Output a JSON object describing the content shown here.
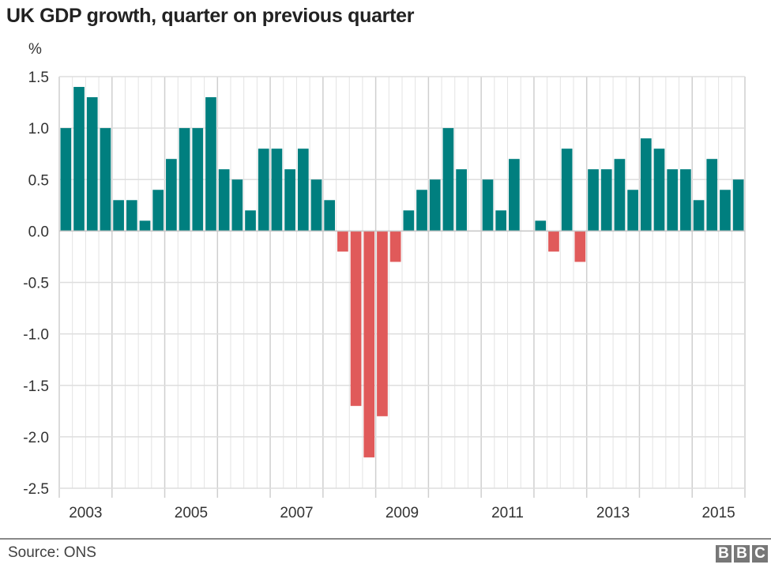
{
  "title": "UK GDP growth, quarter on previous quarter",
  "source": "Source: ONS",
  "logo": "BBC",
  "colors": {
    "positive": "#007f7f",
    "negative": "#e05a5a",
    "grid": "#dddddd"
  },
  "chart_data": {
    "type": "bar",
    "title": "UK GDP growth, quarter on previous quarter",
    "ylabel": "%",
    "xlabel": "",
    "ylim": [
      -2.5,
      1.5
    ],
    "yticks": [
      "1.5",
      "1.0",
      "0.5",
      "0.0",
      "-0.5",
      "-1.0",
      "-1.5",
      "-2.0",
      "-2.5"
    ],
    "xtick_labels": [
      "2003",
      "2005",
      "2007",
      "2009",
      "2011",
      "2013",
      "2015"
    ],
    "start_year": 2003,
    "grid": true,
    "categories": [
      "2003 Q1",
      "2003 Q2",
      "2003 Q3",
      "2003 Q4",
      "2004 Q1",
      "2004 Q2",
      "2004 Q3",
      "2004 Q4",
      "2005 Q1",
      "2005 Q2",
      "2005 Q3",
      "2005 Q4",
      "2006 Q1",
      "2006 Q2",
      "2006 Q3",
      "2006 Q4",
      "2007 Q1",
      "2007 Q2",
      "2007 Q3",
      "2007 Q4",
      "2008 Q1",
      "2008 Q2",
      "2008 Q3",
      "2008 Q4",
      "2009 Q1",
      "2009 Q2",
      "2009 Q3",
      "2009 Q4",
      "2010 Q1",
      "2010 Q2",
      "2010 Q3",
      "2010 Q4",
      "2011 Q1",
      "2011 Q2",
      "2011 Q3",
      "2011 Q4",
      "2012 Q1",
      "2012 Q2",
      "2012 Q3",
      "2012 Q4",
      "2013 Q1",
      "2013 Q2",
      "2013 Q3",
      "2013 Q4",
      "2014 Q1",
      "2014 Q2",
      "2014 Q3",
      "2014 Q4",
      "2015 Q1",
      "2015 Q2",
      "2015 Q3",
      "2015 Q4"
    ],
    "values": [
      1.0,
      1.4,
      1.3,
      1.0,
      0.3,
      0.3,
      0.1,
      0.4,
      0.7,
      1.0,
      1.0,
      1.3,
      0.6,
      0.5,
      0.2,
      0.8,
      0.8,
      0.6,
      0.8,
      0.5,
      0.3,
      -0.2,
      -1.7,
      -2.2,
      -1.8,
      -0.3,
      0.2,
      0.4,
      0.5,
      1.0,
      0.6,
      0.0,
      0.5,
      0.2,
      0.7,
      0.0,
      0.1,
      -0.2,
      0.8,
      -0.3,
      0.6,
      0.6,
      0.7,
      0.4,
      0.9,
      0.8,
      0.6,
      0.6,
      0.3,
      0.7,
      0.4,
      0.5
    ]
  }
}
